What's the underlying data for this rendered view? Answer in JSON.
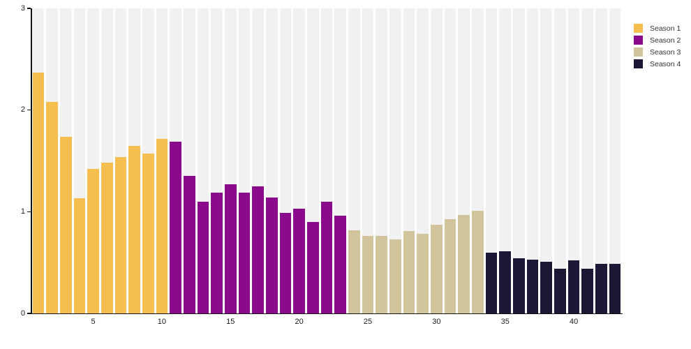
{
  "chart_data": {
    "type": "bar",
    "title": "",
    "xlabel": "",
    "ylabel": "",
    "ylim": [
      0,
      3
    ],
    "yticks": [
      "0",
      "1",
      "2",
      "3"
    ],
    "xticks": [
      5,
      10,
      15,
      20,
      25,
      30,
      35,
      40
    ],
    "x_unit": "episode_index",
    "x_start": 1,
    "total_bars": 43,
    "grid": "vertical-bands-per-bar",
    "band_color": "#f1f1f1",
    "background_color": "#ffffff",
    "axis_color": "#111111",
    "legend_position": "top-right",
    "series": [
      {
        "name": "Season 1",
        "color": "#f5be4e",
        "values": [
          2.37,
          2.08,
          1.74,
          1.13,
          1.42,
          1.48,
          1.54,
          1.65,
          1.57,
          1.72
        ]
      },
      {
        "name": "Season 2",
        "color": "#8b0a8b",
        "values": [
          1.69,
          1.35,
          1.1,
          1.19,
          1.27,
          1.19,
          1.25,
          1.14,
          0.99,
          1.03,
          0.9,
          1.1,
          0.96
        ]
      },
      {
        "name": "Season 3",
        "color": "#d2c49c",
        "values": [
          0.82,
          0.76,
          0.76,
          0.73,
          0.81,
          0.78,
          0.87,
          0.93,
          0.97,
          1.01
        ]
      },
      {
        "name": "Season 4",
        "color": "#1d1635",
        "values": [
          0.6,
          0.61,
          0.54,
          0.53,
          0.51,
          0.44,
          0.52,
          0.44,
          0.49,
          0.49
        ]
      }
    ]
  },
  "legend": {
    "items": [
      {
        "label": "Season 1",
        "color": "#f5be4e"
      },
      {
        "label": "Season 2",
        "color": "#8b0a8b"
      },
      {
        "label": "Season 3",
        "color": "#d2c49c"
      },
      {
        "label": "Season 4",
        "color": "#1d1635"
      }
    ]
  }
}
